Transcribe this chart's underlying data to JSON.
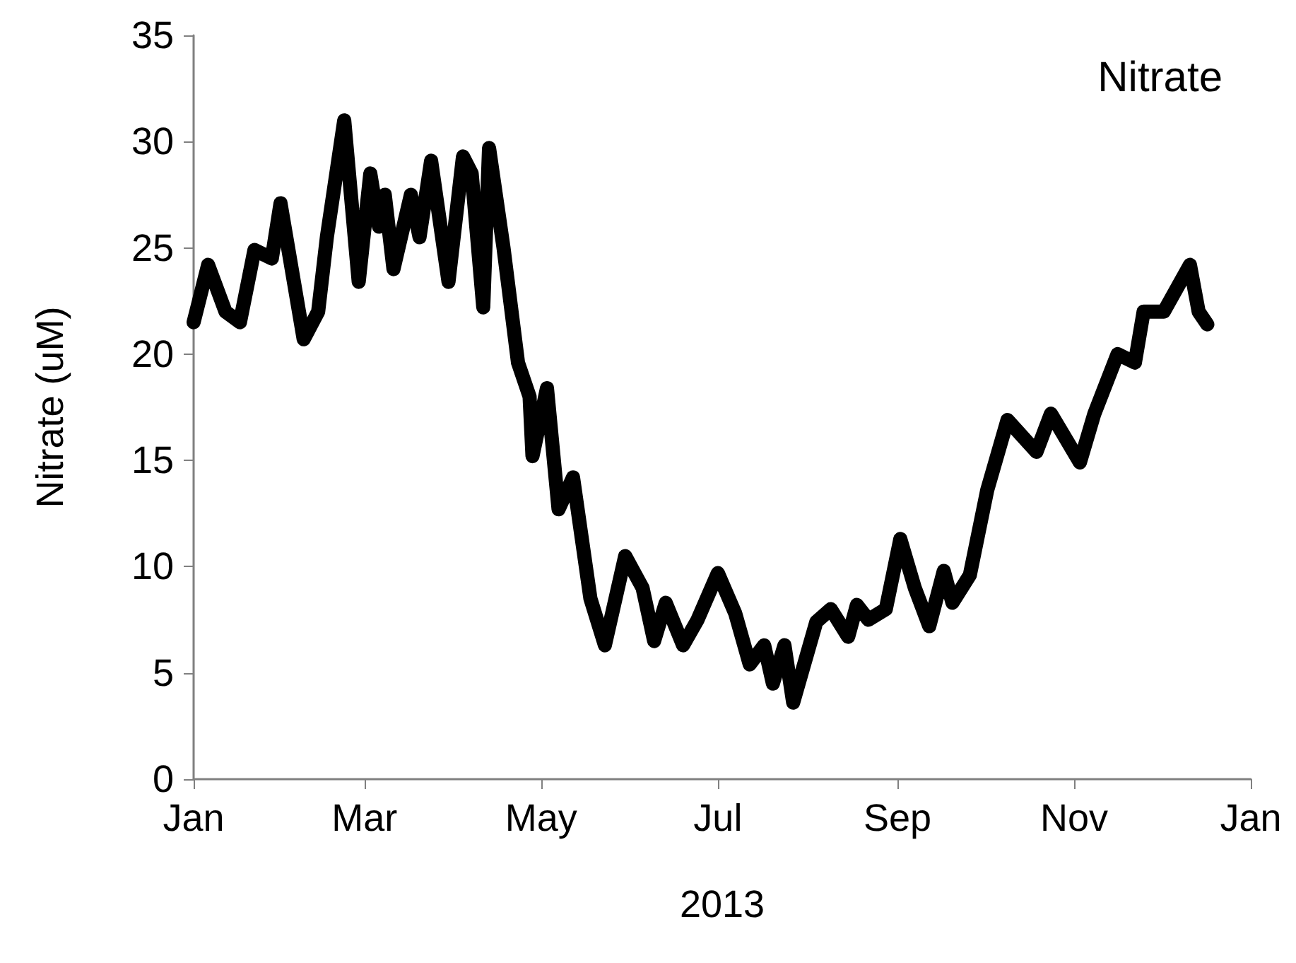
{
  "chart_data": {
    "type": "line",
    "xlabel": "2013",
    "ylabel": "Nitrate (uM)",
    "annotations": [
      "Nitrate"
    ],
    "x": [
      "2013-01-01",
      "2013-01-06",
      "2013-01-12",
      "2013-01-17",
      "2013-01-22",
      "2013-01-28",
      "2013-01-31",
      "2013-02-08",
      "2013-02-13",
      "2013-02-16",
      "2013-02-22",
      "2013-02-27",
      "2013-03-03",
      "2013-03-06",
      "2013-03-08",
      "2013-03-11",
      "2013-03-17",
      "2013-03-20",
      "2013-03-24",
      "2013-03-30",
      "2013-04-04",
      "2013-04-07",
      "2013-04-11",
      "2013-04-13",
      "2013-04-18",
      "2013-04-23",
      "2013-04-27",
      "2013-04-28",
      "2013-05-03",
      "2013-05-07",
      "2013-05-12",
      "2013-05-18",
      "2013-05-23",
      "2013-05-30",
      "2013-06-05",
      "2013-06-09",
      "2013-06-13",
      "2013-06-19",
      "2013-06-24",
      "2013-07-01",
      "2013-07-07",
      "2013-07-12",
      "2013-07-17",
      "2013-07-20",
      "2013-07-24",
      "2013-07-27",
      "2013-08-04",
      "2013-08-09",
      "2013-08-15",
      "2013-08-18",
      "2013-08-22",
      "2013-08-28",
      "2013-09-02",
      "2013-09-07",
      "2013-09-12",
      "2013-09-17",
      "2013-09-20",
      "2013-09-26",
      "2013-10-02",
      "2013-10-09",
      "2013-10-19",
      "2013-10-24",
      "2013-11-03",
      "2013-11-08",
      "2013-11-16",
      "2013-11-22",
      "2013-11-25",
      "2013-12-02",
      "2013-12-11",
      "2013-12-14",
      "2013-12-17"
    ],
    "series": [
      {
        "color": "#000000",
        "values": [
          21.5,
          24.2,
          22,
          21.5,
          24.9,
          24.5,
          27.1,
          20.7,
          22,
          25.5,
          31,
          23.4,
          28.5,
          26,
          27.5,
          24,
          27.5,
          25.5,
          29.1,
          23.4,
          29.3,
          28.5,
          22.2,
          29.7,
          25,
          19.6,
          18,
          15.2,
          18.4,
          12.7,
          14.2,
          8.5,
          6.3,
          10.5,
          9,
          6.5,
          8.3,
          6.3,
          7.5,
          9.7,
          7.8,
          5.4,
          6.3,
          4.5,
          6.3,
          3.6,
          7.4,
          8,
          6.7,
          8.2,
          7.5,
          8,
          11.3,
          9,
          7.2,
          9.8,
          8.3,
          9.6,
          13.6,
          16.9,
          15.4,
          17.2,
          14.9,
          17.2,
          20,
          19.6,
          22,
          22,
          24.2,
          22,
          21.4
        ]
      }
    ],
    "xlim": [
      "2013-01-01",
      "2014-01-01"
    ],
    "xticks": [
      {
        "value": "2013-01-01",
        "label": "Jan"
      },
      {
        "value": "2013-03-01",
        "label": "Mar"
      },
      {
        "value": "2013-05-01",
        "label": "May"
      },
      {
        "value": "2013-07-01",
        "label": "Jul"
      },
      {
        "value": "2013-09-01",
        "label": "Sep"
      },
      {
        "value": "2013-11-01",
        "label": "Nov"
      },
      {
        "value": "2014-01-01",
        "label": "Jan"
      }
    ],
    "ylim": [
      0,
      35
    ],
    "yticks": [
      0,
      5,
      10,
      15,
      20,
      25,
      30,
      35
    ],
    "grid": false,
    "line_style": "solid"
  }
}
